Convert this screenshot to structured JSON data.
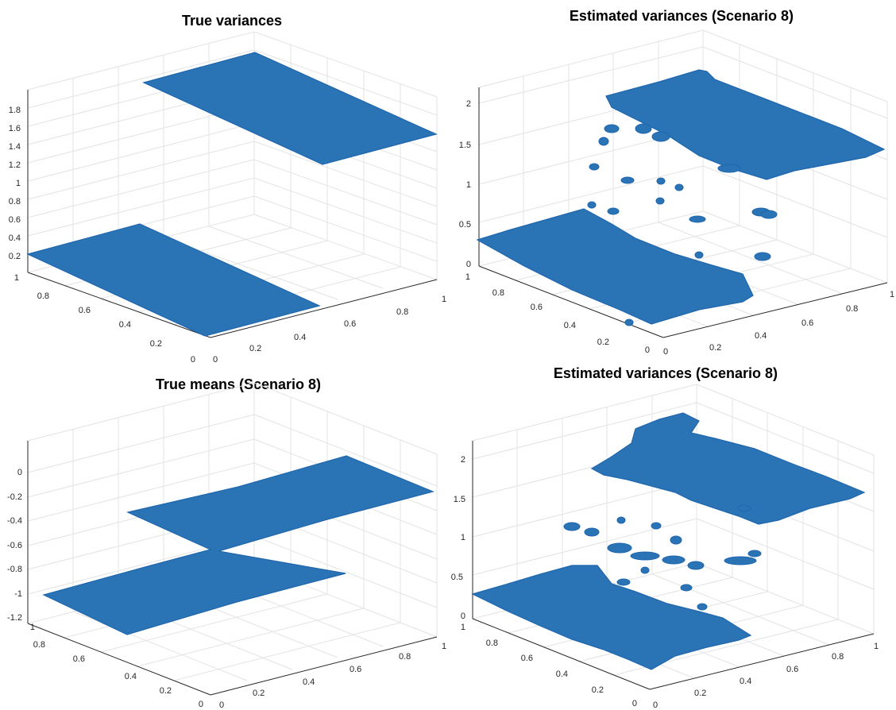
{
  "figure": {
    "panels": [
      {
        "title": "True variances",
        "zticks": [
          "0.2",
          "0.4",
          "0.6",
          "0.8",
          "1",
          "1.2",
          "1.4",
          "1.6",
          "1.8"
        ],
        "xticks": [
          "0",
          "0.2",
          "0.4",
          "0.6",
          "0.8",
          "1"
        ],
        "yticks": [
          "0",
          "0.2",
          "0.4",
          "0.6",
          "0.8",
          "1"
        ]
      },
      {
        "title": "Estimated variances (Scenario 8)",
        "zticks": [
          "0",
          "0.5",
          "1",
          "1.5",
          "2"
        ],
        "xticks": [
          "0",
          "0.2",
          "0.4",
          "0.6",
          "0.8",
          "1"
        ],
        "yticks": [
          "0",
          "0.2",
          "0.4",
          "0.6",
          "0.8",
          "1"
        ]
      },
      {
        "title": "True means (Scenario 8)",
        "zticks": [
          "-1.2",
          "-1",
          "-0.8",
          "-0.6",
          "-0.4",
          "-0.2",
          "0"
        ],
        "xticks": [
          "0",
          "0.2",
          "0.4",
          "0.6",
          "0.8",
          "1"
        ],
        "yticks": [
          "0",
          "0.2",
          "0.4",
          "0.6",
          "0.8",
          "1"
        ]
      },
      {
        "title": "Estimated variances (Scenario 8)",
        "zticks": [
          "0",
          "0.5",
          "1",
          "1.5",
          "2"
        ],
        "xticks": [
          "0",
          "0.2",
          "0.4",
          "0.6",
          "0.8",
          "1"
        ],
        "yticks": [
          "0",
          "0.2",
          "0.4",
          "0.6",
          "0.8",
          "1"
        ]
      }
    ]
  },
  "chart_data": [
    {
      "type": "scatter",
      "title": "True variances",
      "xlim": [
        0,
        1
      ],
      "ylim": [
        0,
        1
      ],
      "zlim": [
        0.2,
        1.8
      ],
      "surfaces": [
        {
          "x_range": [
            0,
            1
          ],
          "y_range": [
            0,
            0.5
          ],
          "z": 0.2
        },
        {
          "x_range": [
            0,
            1
          ],
          "y_range": [
            0.5,
            1
          ],
          "z": 1.8
        }
      ],
      "color": "#2a74b5",
      "marker": "open-circle",
      "grid": true
    },
    {
      "type": "scatter",
      "title": "Estimated variances (Scenario 8)",
      "xlim": [
        0,
        1
      ],
      "ylim": [
        0,
        1
      ],
      "zlim": [
        0,
        2
      ],
      "surfaces": [
        {
          "region": "low",
          "approx_z": 0.3
        },
        {
          "region": "high",
          "approx_z": 2.0
        }
      ],
      "color": "#2a74b5",
      "marker": "open-circle",
      "grid": true
    },
    {
      "type": "scatter",
      "title": "True means (Scenario 8)",
      "xlim": [
        0,
        1
      ],
      "ylim": [
        0,
        1
      ],
      "zlim": [
        -1.2,
        0
      ],
      "surfaces": [
        {
          "shape": "z-shaped",
          "z_range": [
            -1,
            0
          ]
        }
      ],
      "color": "#2a74b5",
      "marker": "open-circle",
      "grid": true
    },
    {
      "type": "scatter",
      "title": "Estimated variances (Scenario 8)",
      "xlim": [
        0,
        1
      ],
      "ylim": [
        0,
        1
      ],
      "zlim": [
        0,
        2
      ],
      "surfaces": [
        {
          "region": "low",
          "approx_z": 0.3
        },
        {
          "region": "high",
          "approx_z": 2.0
        }
      ],
      "color": "#2a74b5",
      "marker": "open-circle",
      "grid": true
    }
  ]
}
